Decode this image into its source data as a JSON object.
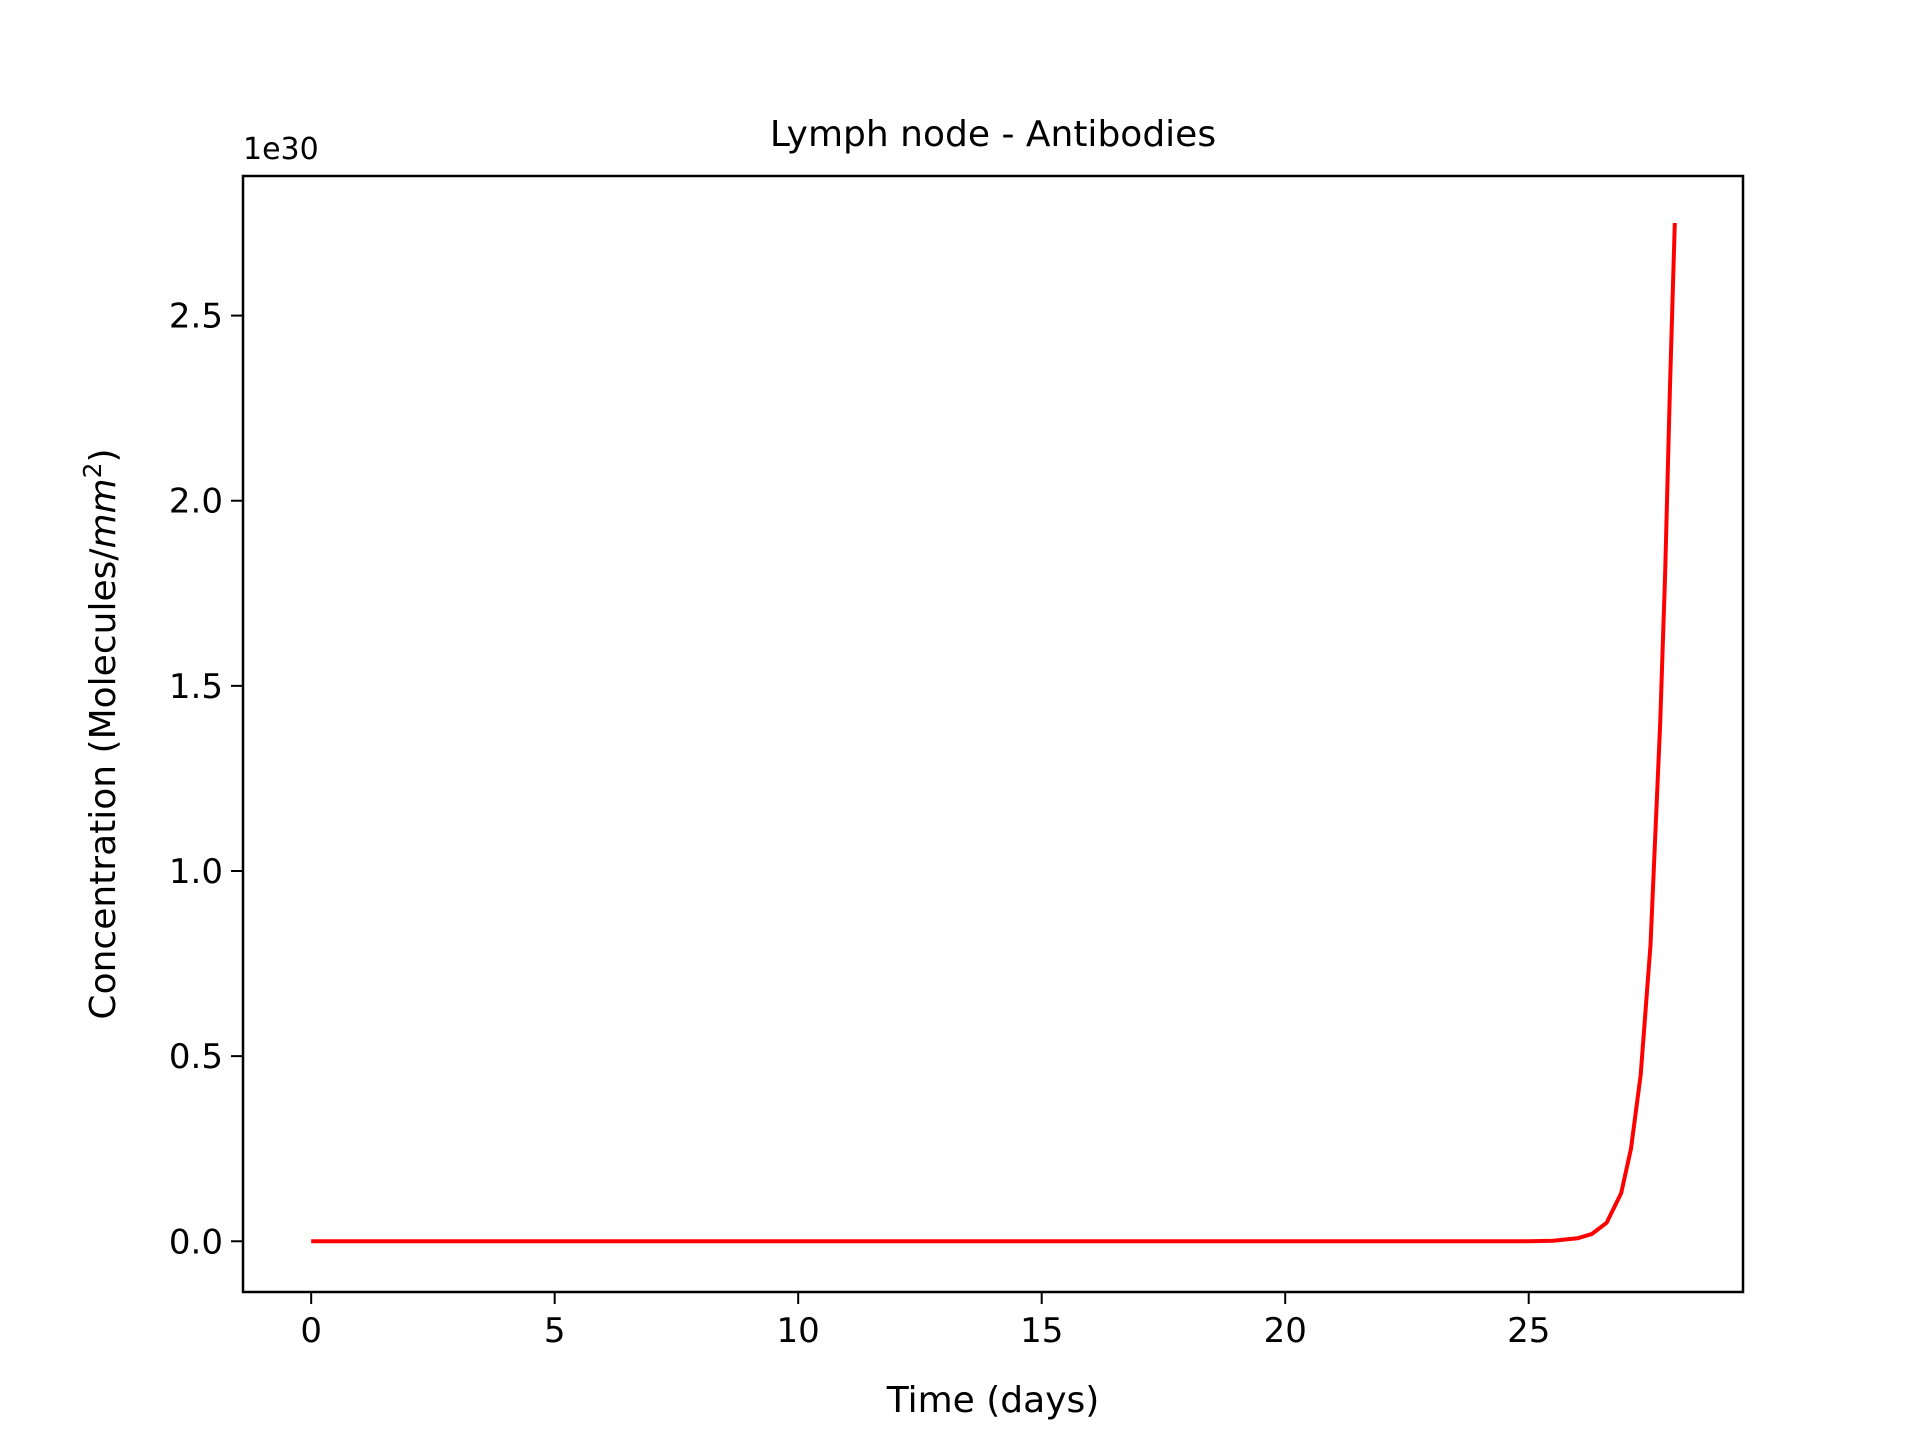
{
  "chart_data": {
    "type": "line",
    "title": "Lymph node - Antibodies",
    "xlabel": "Time (days)",
    "ylabel_prefix": "Concentration (Molecules/",
    "ylabel_unit": "mm",
    "ylabel_exponent": "2",
    "ylabel_suffix": ")",
    "offset_label": "1e30",
    "xlim": [
      -1.4,
      29.4
    ],
    "ylim": [
      -0.137,
      2.877
    ],
    "xticks": [
      0,
      5,
      10,
      15,
      20,
      25
    ],
    "xtick_labels": [
      "0",
      "5",
      "10",
      "15",
      "20",
      "25"
    ],
    "yticks": [
      0.0,
      0.5,
      1.0,
      1.5,
      2.0,
      2.5
    ],
    "ytick_labels": [
      "0.0",
      "0.5",
      "1.0",
      "1.5",
      "2.0",
      "2.5"
    ],
    "grid": false,
    "series": [
      {
        "color": "#ff0000",
        "x": [
          0,
          5,
          10,
          15,
          20,
          24,
          25,
          25.5,
          26,
          26.3,
          26.6,
          26.9,
          27.1,
          27.3,
          27.5,
          27.7,
          27.8,
          27.9,
          28.0
        ],
        "y": [
          0,
          0,
          0,
          0,
          0,
          0,
          0.0003,
          0.0015,
          0.008,
          0.02,
          0.05,
          0.13,
          0.25,
          0.45,
          0.8,
          1.4,
          1.8,
          2.3,
          2.75
        ]
      }
    ]
  }
}
